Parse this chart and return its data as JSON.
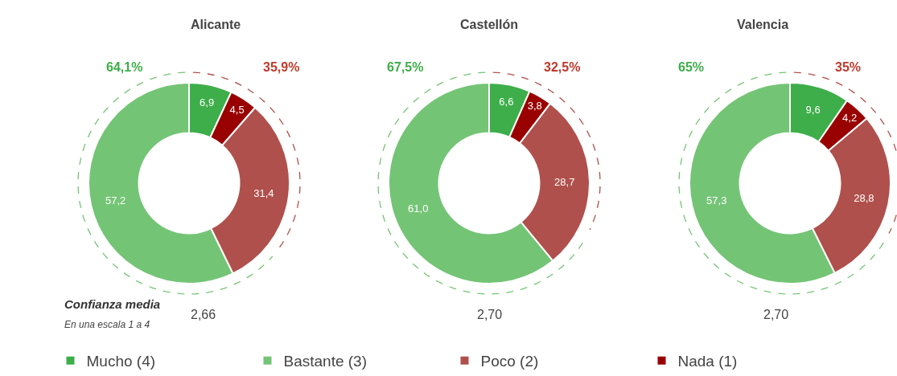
{
  "chart_data": [
    {
      "type": "donut",
      "title": "Alicante",
      "categories": [
        "Mucho (4)",
        "Bastante (3)",
        "Poco (2)",
        "Nada (1)"
      ],
      "values": [
        6.9,
        57.2,
        31.4,
        4.5
      ],
      "colors": [
        "#3dae49",
        "#74c476",
        "#b0504c",
        "#990000"
      ],
      "value_labels": [
        "6,9",
        "57,2",
        "31,4",
        "4,5"
      ],
      "legend": "bottom",
      "annotations": [
        "64,1%",
        "35,9%",
        "2,66",
        "Confianza media",
        "En una escala 1 a 4"
      ]
    },
    {
      "type": "donut",
      "title": "Castellón",
      "categories": [
        null,
        null,
        null,
        null
      ],
      "values": [
        6.6,
        61.0,
        28.7,
        3.8
      ],
      "colors": [
        "#3dae49",
        "#74c476",
        "#b0504c",
        "#990000"
      ],
      "value_labels": [
        "6,6",
        "61,0",
        "28,7",
        "3,8"
      ],
      "annotations": [
        "67,5%",
        "32,5%",
        "2,70"
      ]
    },
    {
      "type": "donut",
      "title": "Valencia",
      "categories": [
        null,
        null,
        null,
        null
      ],
      "values": [
        9.6,
        57.3,
        28.8,
        4.2
      ],
      "colors": [
        "#3dae49",
        "#74c476",
        "#b0504c",
        "#990000"
      ],
      "value_labels": [
        "9,6",
        "57,3",
        "28,8",
        "4,2"
      ],
      "annotations": [
        "65%",
        "35%",
        "2,70"
      ]
    }
  ]
}
